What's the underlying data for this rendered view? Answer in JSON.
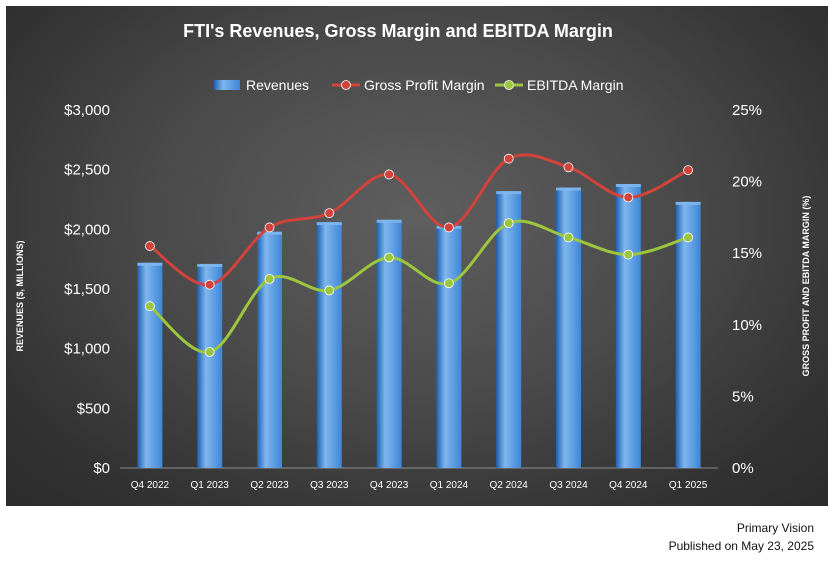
{
  "colors": {
    "bar": "#3f86d6",
    "bar_light": "#7fb6ee",
    "bar_dark": "#1f5fae",
    "gross": "#d2433c",
    "ebitda": "#9cc63d",
    "text": "#ffffff"
  },
  "footer": {
    "source": "Primary Vision",
    "published": "Published on May 23, 2025"
  },
  "chart_data": {
    "type": "bar",
    "title": "FTI's Revenues, Gross Margin and EBITDA Margin",
    "ylabel": "REVENUES ($, MILLIONS)",
    "y2label": "GROSS PROFIT AND EBITDA MARGIN (%)",
    "ylim": [
      0,
      3000
    ],
    "y2lim": [
      0,
      25
    ],
    "yticks": [
      "$0",
      "$500",
      "$1,000",
      "$1,500",
      "$2,000",
      "$2,500",
      "$3,000"
    ],
    "y2ticks": [
      "0%",
      "5%",
      "10%",
      "15%",
      "20%",
      "25%"
    ],
    "grid": false,
    "legend_position": "top-center",
    "categories": [
      "Q4 2022",
      "Q1 2023",
      "Q2 2023",
      "Q3 2023",
      "Q4 2023",
      "Q1 2024",
      "Q2 2024",
      "Q3 2024",
      "Q4 2024",
      "Q1 2025"
    ],
    "series": [
      {
        "name": "Revenues",
        "type": "bar",
        "axis": "left",
        "values": [
          1720,
          1710,
          1980,
          2060,
          2080,
          2030,
          2320,
          2350,
          2380,
          2230
        ]
      },
      {
        "name": "Gross Profit Margin",
        "type": "line",
        "axis": "right",
        "values": [
          15.5,
          12.8,
          16.8,
          17.8,
          20.5,
          16.8,
          21.6,
          21.0,
          18.9,
          20.8
        ]
      },
      {
        "name": "EBITDA Margin",
        "type": "line",
        "axis": "right",
        "values": [
          11.3,
          8.1,
          13.2,
          12.4,
          14.7,
          12.9,
          17.1,
          16.1,
          14.9,
          16.1
        ]
      }
    ]
  }
}
